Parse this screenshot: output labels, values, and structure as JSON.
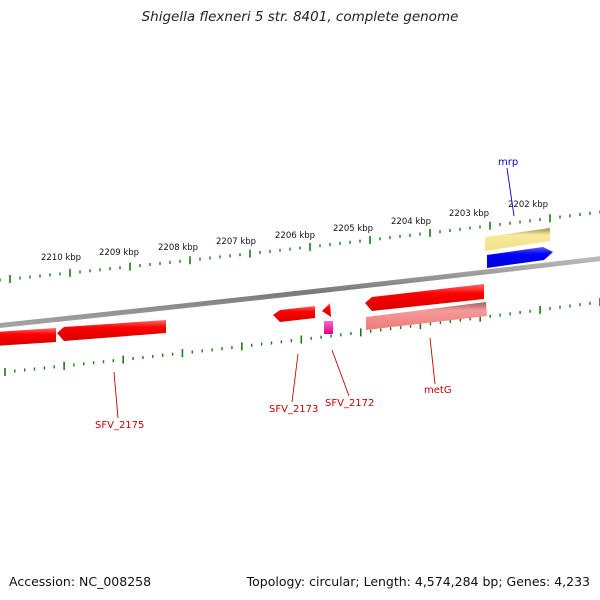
{
  "title": "Shigella flexneri 5 str. 8401, complete genome",
  "footer": {
    "accession": "Accession: NC_008258",
    "summary": "Topology: circular; Length: 4,574,284 bp; Genes: 4,233"
  },
  "map": {
    "ruler_labels": [
      "2210 kbp",
      "2209 kbp",
      "2208 kbp",
      "2207 kbp",
      "2206 kbp",
      "2205 kbp",
      "2204 kbp",
      "2203 kbp",
      "2202 kbp"
    ],
    "colors": {
      "tick": "#1a7a1a",
      "backbone": "#8c8c8c",
      "cds": "#ff0000",
      "cds_light": "#f08080",
      "rna": "#ee1199",
      "regulator": "#0000ff",
      "pseudo": "#f0e08c",
      "callout_red": "#cc0000",
      "callout_blue": "#0000cc"
    },
    "gene_labels": {
      "mrp": "mrp",
      "sfv_2175": "SFV_2175",
      "sfv_2173": "SFV_2173",
      "sfv_2172": "SFV_2172",
      "metg": "metG"
    }
  }
}
